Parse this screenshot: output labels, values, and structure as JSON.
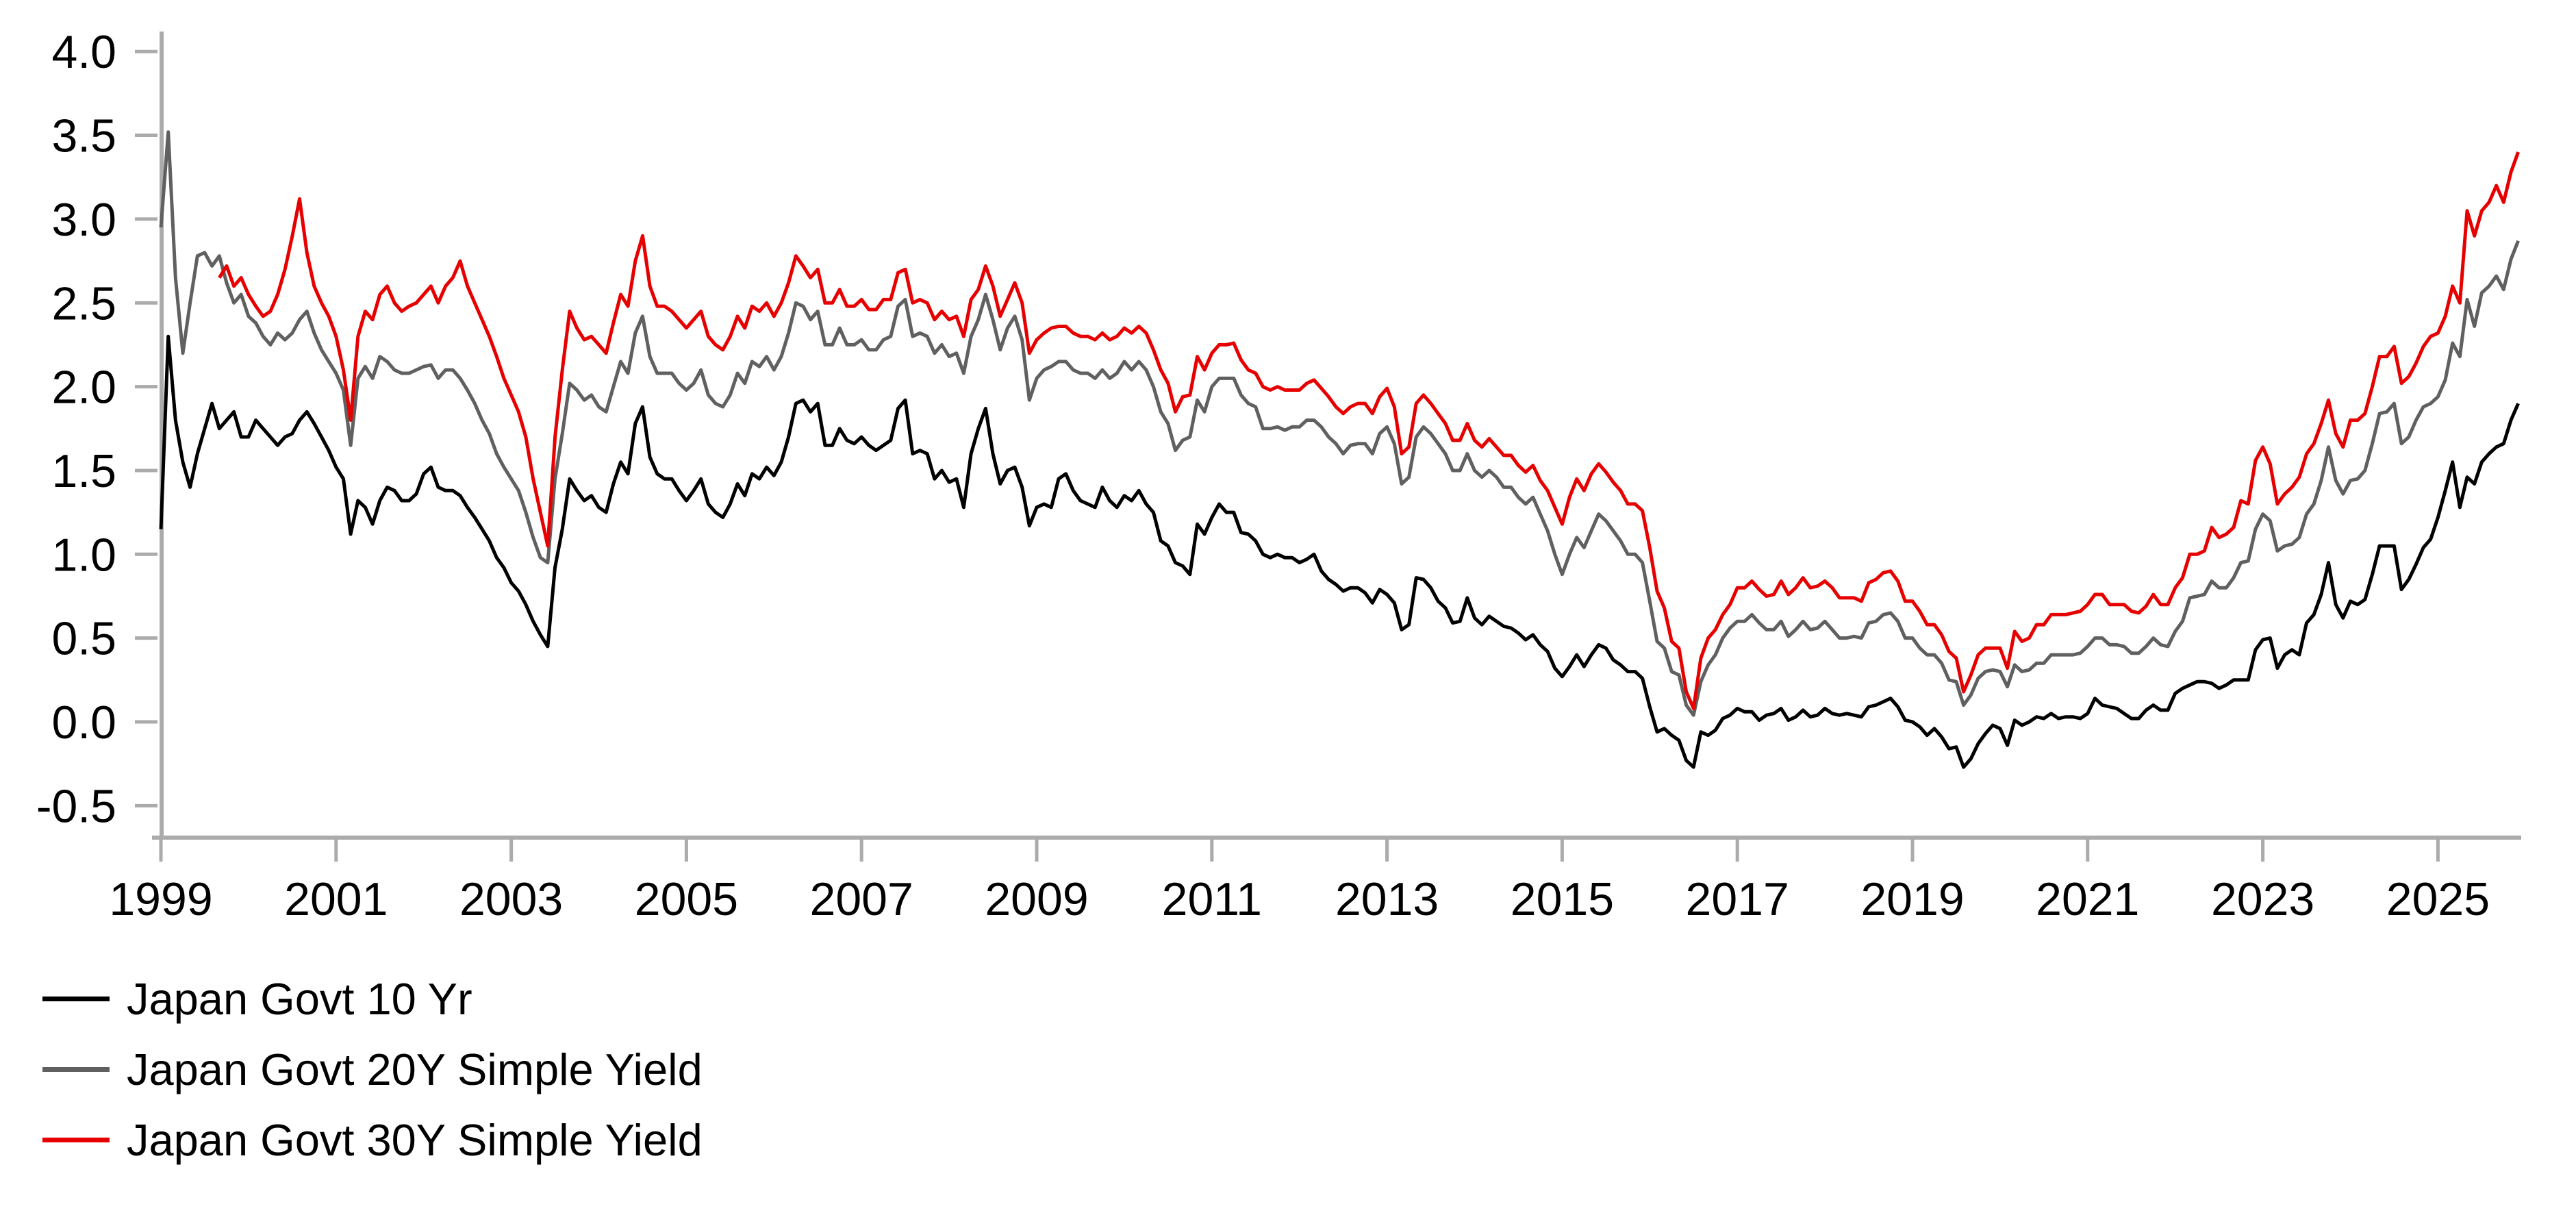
{
  "chart_data": {
    "type": "line",
    "title": "",
    "xlabel": "",
    "ylabel": "",
    "xlim": [
      1998.98,
      2025.95
    ],
    "ylim": [
      -0.75,
      4.12
    ],
    "grid": false,
    "legend_position": "bottom-left",
    "axis_color": "#ababab",
    "text_color": "#000000",
    "x_axis": {
      "tick_years": [
        1999,
        2001,
        2003,
        2005,
        2007,
        2009,
        2011,
        2013,
        2015,
        2017,
        2019,
        2021,
        2023,
        2025
      ],
      "tick_labels": [
        "1999",
        "2001",
        "2003",
        "2005",
        "2007",
        "2009",
        "2011",
        "2013",
        "2015",
        "2017",
        "2019",
        "2021",
        "2023",
        "2025"
      ]
    },
    "y_axis": {
      "tick_values": [
        4.0,
        3.5,
        3.0,
        2.5,
        2.0,
        1.5,
        1.0,
        0.5,
        0.0,
        -0.5
      ],
      "tick_labels": [
        "4.0",
        "3.5",
        "3.0",
        "2.5",
        "2.0",
        "1.5",
        "1.0",
        "0.5",
        "0.0",
        "-0.5"
      ]
    },
    "series": [
      {
        "name": "Japan Govt 10 Yr",
        "color": "#000000",
        "line_width": 5,
        "start_year": 1999.0,
        "interval_years": 0.0833333,
        "values": [
          1.15,
          2.3,
          1.8,
          1.55,
          1.4,
          1.6,
          1.75,
          1.9,
          1.75,
          1.8,
          1.85,
          1.7,
          1.7,
          1.8,
          1.75,
          1.7,
          1.65,
          1.7,
          1.72,
          1.8,
          1.85,
          1.78,
          1.7,
          1.62,
          1.52,
          1.45,
          1.12,
          1.32,
          1.28,
          1.18,
          1.32,
          1.4,
          1.38,
          1.32,
          1.32,
          1.36,
          1.48,
          1.52,
          1.4,
          1.38,
          1.38,
          1.35,
          1.28,
          1.22,
          1.15,
          1.08,
          0.98,
          0.92,
          0.83,
          0.78,
          0.7,
          0.6,
          0.52,
          0.45,
          0.92,
          1.15,
          1.45,
          1.38,
          1.32,
          1.35,
          1.28,
          1.25,
          1.42,
          1.55,
          1.48,
          1.78,
          1.88,
          1.58,
          1.48,
          1.45,
          1.45,
          1.38,
          1.32,
          1.38,
          1.45,
          1.3,
          1.25,
          1.22,
          1.3,
          1.42,
          1.35,
          1.48,
          1.45,
          1.52,
          1.47,
          1.55,
          1.7,
          1.9,
          1.92,
          1.85,
          1.9,
          1.65,
          1.65,
          1.75,
          1.68,
          1.66,
          1.7,
          1.65,
          1.62,
          1.65,
          1.68,
          1.87,
          1.92,
          1.6,
          1.62,
          1.6,
          1.45,
          1.5,
          1.43,
          1.45,
          1.28,
          1.6,
          1.75,
          1.87,
          1.6,
          1.42,
          1.5,
          1.52,
          1.4,
          1.17,
          1.28,
          1.3,
          1.28,
          1.45,
          1.48,
          1.38,
          1.32,
          1.3,
          1.28,
          1.4,
          1.32,
          1.28,
          1.35,
          1.32,
          1.38,
          1.3,
          1.25,
          1.08,
          1.05,
          0.95,
          0.93,
          0.88,
          1.18,
          1.12,
          1.22,
          1.3,
          1.25,
          1.25,
          1.13,
          1.12,
          1.08,
          1.0,
          0.98,
          1.0,
          0.98,
          0.98,
          0.95,
          0.97,
          1.0,
          0.9,
          0.85,
          0.82,
          0.78,
          0.8,
          0.8,
          0.77,
          0.71,
          0.79,
          0.76,
          0.71,
          0.55,
          0.58,
          0.86,
          0.85,
          0.8,
          0.72,
          0.68,
          0.59,
          0.6,
          0.74,
          0.62,
          0.58,
          0.63,
          0.6,
          0.57,
          0.56,
          0.53,
          0.49,
          0.52,
          0.46,
          0.42,
          0.32,
          0.27,
          0.33,
          0.4,
          0.33,
          0.4,
          0.46,
          0.44,
          0.37,
          0.34,
          0.3,
          0.3,
          0.26,
          0.09,
          -0.06,
          -0.04,
          -0.08,
          -0.11,
          -0.23,
          -0.27,
          -0.06,
          -0.08,
          -0.05,
          0.02,
          0.04,
          0.08,
          0.06,
          0.06,
          0.01,
          0.04,
          0.05,
          0.08,
          0.01,
          0.03,
          0.07,
          0.03,
          0.04,
          0.08,
          0.05,
          0.04,
          0.05,
          0.04,
          0.03,
          0.09,
          0.1,
          0.12,
          0.14,
          0.09,
          0.01,
          0.0,
          -0.03,
          -0.08,
          -0.04,
          -0.09,
          -0.16,
          -0.15,
          -0.27,
          -0.22,
          -0.13,
          -0.07,
          -0.02,
          -0.04,
          -0.14,
          0.01,
          -0.02,
          0.0,
          0.03,
          0.02,
          0.05,
          0.02,
          0.03,
          0.03,
          0.02,
          0.05,
          0.14,
          0.1,
          0.09,
          0.08,
          0.05,
          0.02,
          0.02,
          0.07,
          0.1,
          0.07,
          0.07,
          0.17,
          0.2,
          0.22,
          0.24,
          0.24,
          0.23,
          0.2,
          0.22,
          0.25,
          0.25,
          0.25,
          0.43,
          0.49,
          0.5,
          0.32,
          0.4,
          0.43,
          0.4,
          0.59,
          0.64,
          0.76,
          0.95,
          0.7,
          0.62,
          0.72,
          0.7,
          0.73,
          0.88,
          1.05,
          1.05,
          1.05,
          0.79,
          0.85,
          0.94,
          1.04,
          1.09,
          1.22,
          1.38,
          1.55,
          1.28,
          1.46,
          1.42,
          1.55,
          1.6,
          1.64,
          1.66,
          1.8,
          1.9
        ]
      },
      {
        "name": "Japan Govt 20Y Simple Yield",
        "color": "#606060",
        "line_width": 5,
        "start_year": 1999.0,
        "interval_years": 0.0833333,
        "values": [
          2.95,
          3.52,
          2.65,
          2.2,
          2.5,
          2.78,
          2.8,
          2.72,
          2.78,
          2.62,
          2.5,
          2.55,
          2.42,
          2.38,
          2.3,
          2.25,
          2.32,
          2.28,
          2.32,
          2.4,
          2.45,
          2.32,
          2.22,
          2.15,
          2.08,
          1.98,
          1.65,
          2.05,
          2.12,
          2.05,
          2.18,
          2.15,
          2.1,
          2.08,
          2.08,
          2.1,
          2.12,
          2.13,
          2.05,
          2.1,
          2.1,
          2.05,
          1.98,
          1.9,
          1.8,
          1.72,
          1.6,
          1.52,
          1.45,
          1.38,
          1.25,
          1.1,
          0.98,
          0.95,
          1.45,
          1.72,
          2.02,
          1.98,
          1.92,
          1.95,
          1.88,
          1.85,
          2.0,
          2.15,
          2.08,
          2.32,
          2.42,
          2.18,
          2.08,
          2.08,
          2.08,
          2.02,
          1.98,
          2.02,
          2.1,
          1.95,
          1.9,
          1.88,
          1.95,
          2.08,
          2.02,
          2.15,
          2.12,
          2.18,
          2.1,
          2.18,
          2.32,
          2.5,
          2.48,
          2.4,
          2.45,
          2.25,
          2.25,
          2.35,
          2.25,
          2.25,
          2.28,
          2.22,
          2.22,
          2.28,
          2.3,
          2.48,
          2.52,
          2.3,
          2.32,
          2.3,
          2.2,
          2.25,
          2.18,
          2.2,
          2.08,
          2.3,
          2.4,
          2.55,
          2.4,
          2.22,
          2.35,
          2.42,
          2.28,
          1.92,
          2.05,
          2.1,
          2.12,
          2.15,
          2.15,
          2.1,
          2.08,
          2.08,
          2.05,
          2.1,
          2.05,
          2.08,
          2.15,
          2.1,
          2.15,
          2.1,
          2.0,
          1.85,
          1.78,
          1.62,
          1.68,
          1.7,
          1.92,
          1.85,
          2.0,
          2.05,
          2.05,
          2.05,
          1.95,
          1.9,
          1.88,
          1.75,
          1.75,
          1.76,
          1.74,
          1.76,
          1.76,
          1.8,
          1.8,
          1.76,
          1.7,
          1.66,
          1.6,
          1.65,
          1.66,
          1.66,
          1.6,
          1.72,
          1.76,
          1.66,
          1.42,
          1.46,
          1.7,
          1.76,
          1.72,
          1.66,
          1.6,
          1.5,
          1.5,
          1.6,
          1.5,
          1.46,
          1.5,
          1.46,
          1.4,
          1.4,
          1.34,
          1.3,
          1.34,
          1.24,
          1.14,
          1.0,
          0.88,
          1.0,
          1.1,
          1.04,
          1.14,
          1.24,
          1.2,
          1.14,
          1.08,
          1.0,
          1.0,
          0.95,
          0.72,
          0.48,
          0.44,
          0.3,
          0.28,
          0.1,
          0.04,
          0.24,
          0.34,
          0.4,
          0.5,
          0.56,
          0.6,
          0.6,
          0.64,
          0.59,
          0.55,
          0.55,
          0.6,
          0.51,
          0.55,
          0.6,
          0.55,
          0.56,
          0.6,
          0.55,
          0.5,
          0.5,
          0.51,
          0.5,
          0.59,
          0.6,
          0.64,
          0.65,
          0.6,
          0.5,
          0.5,
          0.44,
          0.4,
          0.4,
          0.35,
          0.25,
          0.24,
          0.1,
          0.16,
          0.26,
          0.3,
          0.31,
          0.3,
          0.21,
          0.34,
          0.3,
          0.31,
          0.35,
          0.35,
          0.4,
          0.4,
          0.4,
          0.4,
          0.41,
          0.45,
          0.5,
          0.5,
          0.46,
          0.46,
          0.45,
          0.41,
          0.41,
          0.45,
          0.5,
          0.46,
          0.45,
          0.54,
          0.6,
          0.74,
          0.75,
          0.76,
          0.84,
          0.8,
          0.8,
          0.86,
          0.95,
          0.96,
          1.15,
          1.24,
          1.2,
          1.02,
          1.05,
          1.06,
          1.1,
          1.24,
          1.3,
          1.44,
          1.64,
          1.44,
          1.36,
          1.44,
          1.45,
          1.5,
          1.66,
          1.84,
          1.85,
          1.9,
          1.66,
          1.7,
          1.8,
          1.88,
          1.9,
          1.94,
          2.04,
          2.26,
          2.18,
          2.52,
          2.36,
          2.56,
          2.6,
          2.66,
          2.58,
          2.76,
          2.87
        ]
      },
      {
        "name": "Japan Govt 30Y Simple Yield",
        "color": "#e60000",
        "line_width": 5,
        "start_year": 1999.6667,
        "interval_years": 0.0833333,
        "values": [
          2.65,
          2.72,
          2.6,
          2.65,
          2.55,
          2.48,
          2.42,
          2.45,
          2.55,
          2.7,
          2.9,
          3.12,
          2.8,
          2.6,
          2.5,
          2.42,
          2.3,
          2.1,
          1.8,
          2.3,
          2.45,
          2.4,
          2.55,
          2.6,
          2.5,
          2.45,
          2.48,
          2.5,
          2.55,
          2.6,
          2.5,
          2.6,
          2.65,
          2.75,
          2.6,
          2.5,
          2.4,
          2.3,
          2.18,
          2.05,
          1.95,
          1.85,
          1.7,
          1.45,
          1.25,
          1.05,
          1.7,
          2.1,
          2.45,
          2.35,
          2.28,
          2.3,
          2.25,
          2.2,
          2.38,
          2.55,
          2.48,
          2.75,
          2.9,
          2.6,
          2.48,
          2.48,
          2.45,
          2.4,
          2.35,
          2.4,
          2.45,
          2.3,
          2.25,
          2.22,
          2.3,
          2.42,
          2.35,
          2.48,
          2.45,
          2.5,
          2.42,
          2.5,
          2.62,
          2.78,
          2.72,
          2.65,
          2.7,
          2.5,
          2.5,
          2.58,
          2.48,
          2.48,
          2.52,
          2.46,
          2.46,
          2.52,
          2.52,
          2.68,
          2.7,
          2.5,
          2.52,
          2.5,
          2.4,
          2.45,
          2.4,
          2.42,
          2.3,
          2.52,
          2.58,
          2.72,
          2.6,
          2.42,
          2.52,
          2.62,
          2.5,
          2.2,
          2.28,
          2.32,
          2.35,
          2.36,
          2.36,
          2.32,
          2.3,
          2.3,
          2.28,
          2.32,
          2.28,
          2.3,
          2.35,
          2.32,
          2.36,
          2.32,
          2.22,
          2.1,
          2.02,
          1.85,
          1.94,
          1.95,
          2.18,
          2.1,
          2.2,
          2.25,
          2.25,
          2.26,
          2.16,
          2.1,
          2.08,
          2.0,
          1.98,
          2.0,
          1.98,
          1.98,
          1.98,
          2.02,
          2.04,
          1.99,
          1.94,
          1.88,
          1.84,
          1.88,
          1.9,
          1.9,
          1.84,
          1.94,
          1.99,
          1.88,
          1.6,
          1.64,
          1.9,
          1.95,
          1.9,
          1.84,
          1.78,
          1.68,
          1.68,
          1.78,
          1.68,
          1.64,
          1.69,
          1.64,
          1.59,
          1.59,
          1.53,
          1.49,
          1.53,
          1.44,
          1.38,
          1.28,
          1.18,
          1.34,
          1.45,
          1.38,
          1.48,
          1.54,
          1.49,
          1.43,
          1.38,
          1.3,
          1.3,
          1.26,
          1.04,
          0.78,
          0.68,
          0.48,
          0.44,
          0.18,
          0.08,
          0.38,
          0.5,
          0.55,
          0.64,
          0.7,
          0.8,
          0.8,
          0.84,
          0.79,
          0.75,
          0.76,
          0.84,
          0.76,
          0.8,
          0.86,
          0.8,
          0.81,
          0.84,
          0.8,
          0.74,
          0.74,
          0.74,
          0.72,
          0.83,
          0.85,
          0.89,
          0.9,
          0.84,
          0.72,
          0.72,
          0.66,
          0.58,
          0.58,
          0.52,
          0.42,
          0.38,
          0.18,
          0.28,
          0.4,
          0.44,
          0.44,
          0.44,
          0.32,
          0.54,
          0.48,
          0.5,
          0.58,
          0.58,
          0.64,
          0.64,
          0.64,
          0.65,
          0.66,
          0.7,
          0.76,
          0.76,
          0.7,
          0.7,
          0.7,
          0.66,
          0.65,
          0.69,
          0.76,
          0.7,
          0.7,
          0.8,
          0.86,
          1.0,
          1.0,
          1.02,
          1.16,
          1.1,
          1.12,
          1.16,
          1.32,
          1.3,
          1.56,
          1.64,
          1.54,
          1.3,
          1.36,
          1.4,
          1.46,
          1.6,
          1.66,
          1.78,
          1.92,
          1.72,
          1.64,
          1.8,
          1.8,
          1.84,
          2.0,
          2.18,
          2.18,
          2.24,
          2.02,
          2.06,
          2.14,
          2.24,
          2.3,
          2.32,
          2.42,
          2.6,
          2.5,
          3.05,
          2.9,
          3.05,
          3.1,
          3.2,
          3.1,
          3.28,
          3.4
        ]
      }
    ]
  }
}
